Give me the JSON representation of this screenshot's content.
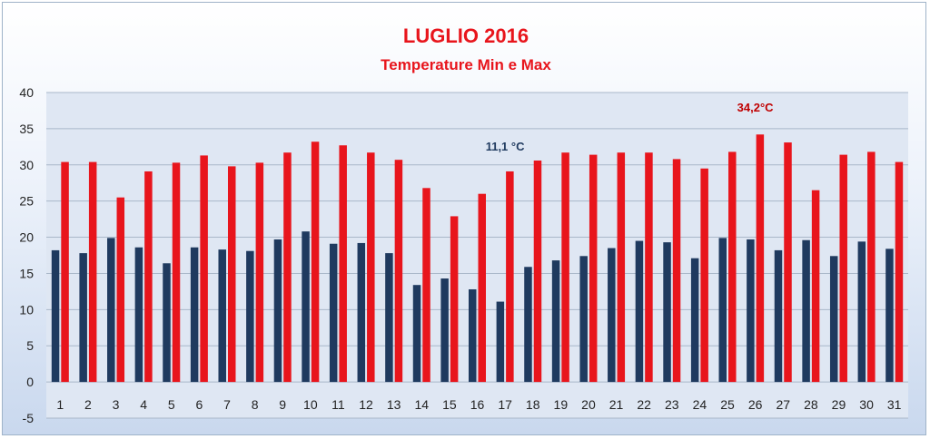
{
  "chart_data": {
    "type": "bar",
    "title": "LUGLIO 2016",
    "subtitle": "Temperature Min e Max",
    "categories": [
      "1",
      "2",
      "3",
      "4",
      "5",
      "6",
      "7",
      "8",
      "9",
      "10",
      "11",
      "12",
      "13",
      "14",
      "15",
      "16",
      "17",
      "18",
      "19",
      "20",
      "21",
      "22",
      "23",
      "24",
      "25",
      "26",
      "27",
      "28",
      "29",
      "30",
      "31"
    ],
    "series": [
      {
        "values": [
          18.2,
          17.8,
          19.9,
          18.6,
          16.4,
          18.6,
          18.3,
          18.1,
          19.7,
          20.8,
          19.1,
          19.2,
          17.8,
          13.4,
          14.3,
          12.8,
          11.1,
          15.9,
          16.8,
          17.4,
          18.5,
          19.5,
          19.3,
          17.1,
          19.9,
          19.7,
          18.2,
          19.6,
          17.4,
          19.4,
          18.4
        ]
      },
      {
        "values": [
          30.4,
          30.4,
          25.5,
          29.1,
          30.3,
          31.3,
          29.8,
          30.3,
          31.7,
          33.2,
          32.7,
          31.7,
          30.7,
          26.8,
          22.9,
          26.0,
          29.1,
          30.6,
          31.7,
          31.4,
          31.7,
          31.7,
          30.8,
          29.5,
          31.8,
          34.2,
          33.1,
          26.5,
          31.4,
          31.8,
          30.4
        ]
      }
    ],
    "ylim": [
      -5,
      40
    ],
    "yticks": [
      -5,
      0,
      5,
      10,
      15,
      20,
      25,
      30,
      35,
      40
    ],
    "grid": true,
    "legend": "none",
    "annotations": [
      {
        "text": "11,1 °C",
        "category": "17",
        "series": 0
      },
      {
        "text": "34,2°C",
        "category": "26",
        "series": 1
      }
    ],
    "colors": {
      "min": "#1f3a5f",
      "max": "#e8151c",
      "title": "#e8151c",
      "annot_min": "#1f3a5f",
      "annot_max": "#c00000",
      "plot_bg": "#dfe7f3",
      "grid": "#a9b7c9"
    }
  }
}
